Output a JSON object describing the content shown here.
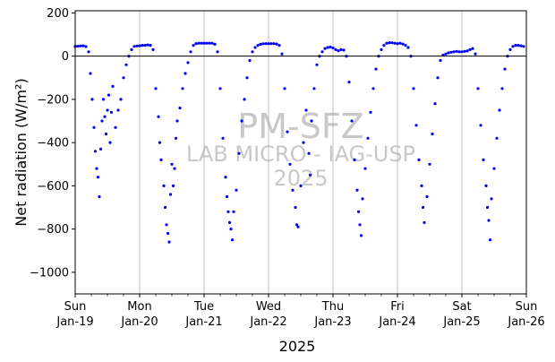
{
  "chart_data": {
    "type": "scatter",
    "title": "",
    "xlabel": "2025",
    "ylabel": "Net radiation (W/m²)",
    "ylim": [
      -1100,
      210
    ],
    "xlim": [
      "2025-01-19",
      "2025-01-26"
    ],
    "yticks": [
      "200",
      "0",
      "−200",
      "−400",
      "−600",
      "−800",
      "−1000"
    ],
    "xticks": [
      {
        "day": "Sun",
        "date": "Jan-19"
      },
      {
        "day": "Mon",
        "date": "Jan-20"
      },
      {
        "day": "Tue",
        "date": "Jan-21"
      },
      {
        "day": "Wed",
        "date": "Jan-22"
      },
      {
        "day": "Thu",
        "date": "Jan-23"
      },
      {
        "day": "Fri",
        "date": "Jan-24"
      },
      {
        "day": "Sat",
        "date": "Jan-25"
      },
      {
        "day": "Sun",
        "date": "Jan-26"
      }
    ],
    "grid": "vertical",
    "zero_line": true,
    "marker_color": "#0000ff",
    "watermark": [
      "PM-SFZ",
      "LAB MICRO - IAG-USP",
      "2025"
    ],
    "series": [
      {
        "points": [
          [
            "2025-01-19 00:00",
            45
          ],
          [
            "2025-01-19 01:00",
            46
          ],
          [
            "2025-01-19 02:00",
            47
          ],
          [
            "2025-01-19 03:00",
            48
          ],
          [
            "2025-01-19 04:00",
            44
          ],
          [
            "2025-01-19 05:00",
            20
          ],
          [
            "2025-01-19 05:40",
            -80
          ],
          [
            "2025-01-19 06:20",
            -200
          ],
          [
            "2025-01-19 07:00",
            -330
          ],
          [
            "2025-01-19 07:30",
            -440
          ],
          [
            "2025-01-19 08:00",
            -520
          ],
          [
            "2025-01-19 08:30",
            -560
          ],
          [
            "2025-01-19 09:00",
            -650
          ],
          [
            "2025-01-19 09:30",
            -430
          ],
          [
            "2025-01-19 10:00",
            -300
          ],
          [
            "2025-01-19 10:30",
            -200
          ],
          [
            "2025-01-19 11:00",
            -280
          ],
          [
            "2025-01-19 11:30",
            -360
          ],
          [
            "2025-01-19 12:00",
            -250
          ],
          [
            "2025-01-19 12:30",
            -180
          ],
          [
            "2025-01-19 13:00",
            -400
          ],
          [
            "2025-01-19 13:30",
            -260
          ],
          [
            "2025-01-19 14:00",
            -140
          ],
          [
            "2025-01-19 15:00",
            -330
          ],
          [
            "2025-01-19 16:00",
            -250
          ],
          [
            "2025-01-19 17:00",
            -200
          ],
          [
            "2025-01-19 18:00",
            -100
          ],
          [
            "2025-01-19 19:00",
            -40
          ],
          [
            "2025-01-19 20:00",
            0
          ],
          [
            "2025-01-19 21:00",
            30
          ],
          [
            "2025-01-19 22:00",
            45
          ],
          [
            "2025-01-19 23:00",
            47
          ],
          [
            "2025-01-20 00:00",
            48
          ],
          [
            "2025-01-20 01:00",
            50
          ],
          [
            "2025-01-20 02:00",
            50
          ],
          [
            "2025-01-20 03:00",
            52
          ],
          [
            "2025-01-20 04:00",
            50
          ],
          [
            "2025-01-20 05:00",
            30
          ],
          [
            "2025-01-20 06:00",
            -150
          ],
          [
            "2025-01-20 07:00",
            -280
          ],
          [
            "2025-01-20 07:30",
            -400
          ],
          [
            "2025-01-20 08:00",
            -480
          ],
          [
            "2025-01-20 09:00",
            -600
          ],
          [
            "2025-01-20 09:30",
            -700
          ],
          [
            "2025-01-20 10:00",
            -780
          ],
          [
            "2025-01-20 10:30",
            -820
          ],
          [
            "2025-01-20 11:00",
            -860
          ],
          [
            "2025-01-20 11:30",
            -640
          ],
          [
            "2025-01-20 12:00",
            -500
          ],
          [
            "2025-01-20 12:30",
            -600
          ],
          [
            "2025-01-20 13:00",
            -520
          ],
          [
            "2025-01-20 13:30",
            -380
          ],
          [
            "2025-01-20 14:00",
            -300
          ],
          [
            "2025-01-20 15:00",
            -240
          ],
          [
            "2025-01-20 16:00",
            -150
          ],
          [
            "2025-01-20 17:00",
            -80
          ],
          [
            "2025-01-20 18:00",
            -30
          ],
          [
            "2025-01-20 19:00",
            20
          ],
          [
            "2025-01-20 20:00",
            50
          ],
          [
            "2025-01-20 21:00",
            58
          ],
          [
            "2025-01-20 22:00",
            60
          ],
          [
            "2025-01-20 23:00",
            60
          ],
          [
            "2025-01-21 00:00",
            60
          ],
          [
            "2025-01-21 01:00",
            60
          ],
          [
            "2025-01-21 02:00",
            60
          ],
          [
            "2025-01-21 03:00",
            60
          ],
          [
            "2025-01-21 04:00",
            55
          ],
          [
            "2025-01-21 05:00",
            20
          ],
          [
            "2025-01-21 06:00",
            -150
          ],
          [
            "2025-01-21 07:00",
            -380
          ],
          [
            "2025-01-21 08:00",
            -560
          ],
          [
            "2025-01-21 08:30",
            -650
          ],
          [
            "2025-01-21 09:00",
            -720
          ],
          [
            "2025-01-21 09:30",
            -770
          ],
          [
            "2025-01-21 10:00",
            -800
          ],
          [
            "2025-01-21 10:30",
            -850
          ],
          [
            "2025-01-21 11:00",
            -720
          ],
          [
            "2025-01-21 12:00",
            -620
          ],
          [
            "2025-01-21 13:00",
            -450
          ],
          [
            "2025-01-21 14:00",
            -300
          ],
          [
            "2025-01-21 15:00",
            -200
          ],
          [
            "2025-01-21 16:00",
            -100
          ],
          [
            "2025-01-21 17:00",
            -20
          ],
          [
            "2025-01-21 18:00",
            20
          ],
          [
            "2025-01-21 19:00",
            40
          ],
          [
            "2025-01-21 20:00",
            50
          ],
          [
            "2025-01-21 21:00",
            55
          ],
          [
            "2025-01-21 22:00",
            57
          ],
          [
            "2025-01-21 23:00",
            58
          ],
          [
            "2025-01-22 00:00",
            58
          ],
          [
            "2025-01-22 01:00",
            58
          ],
          [
            "2025-01-22 02:00",
            58
          ],
          [
            "2025-01-22 03:00",
            56
          ],
          [
            "2025-01-22 04:00",
            50
          ],
          [
            "2025-01-22 05:00",
            10
          ],
          [
            "2025-01-22 06:00",
            -150
          ],
          [
            "2025-01-22 07:00",
            -350
          ],
          [
            "2025-01-22 08:00",
            -500
          ],
          [
            "2025-01-22 09:00",
            -620
          ],
          [
            "2025-01-22 10:00",
            -700
          ],
          [
            "2025-01-22 10:30",
            -780
          ],
          [
            "2025-01-22 11:00",
            -790
          ],
          [
            "2025-01-22 12:00",
            -600
          ],
          [
            "2025-01-22 13:00",
            -400
          ],
          [
            "2025-01-22 14:00",
            -250
          ],
          [
            "2025-01-22 15:00",
            -450
          ],
          [
            "2025-01-22 15:30",
            -550
          ],
          [
            "2025-01-22 16:00",
            -300
          ],
          [
            "2025-01-22 17:00",
            -150
          ],
          [
            "2025-01-22 18:00",
            -40
          ],
          [
            "2025-01-22 19:00",
            0
          ],
          [
            "2025-01-22 20:00",
            20
          ],
          [
            "2025-01-22 21:00",
            35
          ],
          [
            "2025-01-22 22:00",
            40
          ],
          [
            "2025-01-22 23:00",
            42
          ],
          [
            "2025-01-23 00:00",
            38
          ],
          [
            "2025-01-23 01:00",
            30
          ],
          [
            "2025-01-23 02:00",
            25
          ],
          [
            "2025-01-23 03:00",
            30
          ],
          [
            "2025-01-23 04:00",
            28
          ],
          [
            "2025-01-23 05:00",
            0
          ],
          [
            "2025-01-23 06:00",
            -120
          ],
          [
            "2025-01-23 07:00",
            -300
          ],
          [
            "2025-01-23 08:00",
            -480
          ],
          [
            "2025-01-23 09:00",
            -620
          ],
          [
            "2025-01-23 09:30",
            -720
          ],
          [
            "2025-01-23 10:00",
            -780
          ],
          [
            "2025-01-23 10:30",
            -830
          ],
          [
            "2025-01-23 11:00",
            -660
          ],
          [
            "2025-01-23 12:00",
            -520
          ],
          [
            "2025-01-23 13:00",
            -380
          ],
          [
            "2025-01-23 14:00",
            -260
          ],
          [
            "2025-01-23 15:00",
            -150
          ],
          [
            "2025-01-23 16:00",
            -60
          ],
          [
            "2025-01-23 17:00",
            0
          ],
          [
            "2025-01-23 18:00",
            30
          ],
          [
            "2025-01-23 19:00",
            50
          ],
          [
            "2025-01-23 20:00",
            60
          ],
          [
            "2025-01-23 21:00",
            62
          ],
          [
            "2025-01-23 22:00",
            62
          ],
          [
            "2025-01-23 23:00",
            60
          ],
          [
            "2025-01-24 00:00",
            58
          ],
          [
            "2025-01-24 01:00",
            60
          ],
          [
            "2025-01-24 02:00",
            56
          ],
          [
            "2025-01-24 03:00",
            50
          ],
          [
            "2025-01-24 04:00",
            40
          ],
          [
            "2025-01-24 05:00",
            0
          ],
          [
            "2025-01-24 06:00",
            -150
          ],
          [
            "2025-01-24 07:00",
            -320
          ],
          [
            "2025-01-24 08:00",
            -480
          ],
          [
            "2025-01-24 09:00",
            -600
          ],
          [
            "2025-01-24 09:30",
            -700
          ],
          [
            "2025-01-24 10:00",
            -770
          ],
          [
            "2025-01-24 11:00",
            -650
          ],
          [
            "2025-01-24 12:00",
            -500
          ],
          [
            "2025-01-24 13:00",
            -360
          ],
          [
            "2025-01-24 14:00",
            -220
          ],
          [
            "2025-01-24 15:00",
            -100
          ],
          [
            "2025-01-24 16:00",
            -20
          ],
          [
            "2025-01-24 17:00",
            5
          ],
          [
            "2025-01-24 18:00",
            10
          ],
          [
            "2025-01-24 19:00",
            15
          ],
          [
            "2025-01-24 20:00",
            18
          ],
          [
            "2025-01-24 21:00",
            20
          ],
          [
            "2025-01-24 22:00",
            22
          ],
          [
            "2025-01-24 23:00",
            20
          ],
          [
            "2025-01-25 00:00",
            20
          ],
          [
            "2025-01-25 01:00",
            22
          ],
          [
            "2025-01-25 02:00",
            24
          ],
          [
            "2025-01-25 03:00",
            30
          ],
          [
            "2025-01-25 04:00",
            35
          ],
          [
            "2025-01-25 05:00",
            10
          ],
          [
            "2025-01-25 06:00",
            -150
          ],
          [
            "2025-01-25 07:00",
            -320
          ],
          [
            "2025-01-25 08:00",
            -480
          ],
          [
            "2025-01-25 09:00",
            -600
          ],
          [
            "2025-01-25 09:30",
            -700
          ],
          [
            "2025-01-25 10:00",
            -760
          ],
          [
            "2025-01-25 10:30",
            -850
          ],
          [
            "2025-01-25 11:00",
            -660
          ],
          [
            "2025-01-25 12:00",
            -520
          ],
          [
            "2025-01-25 13:00",
            -380
          ],
          [
            "2025-01-25 14:00",
            -250
          ],
          [
            "2025-01-25 15:00",
            -150
          ],
          [
            "2025-01-25 16:00",
            -60
          ],
          [
            "2025-01-25 17:00",
            0
          ],
          [
            "2025-01-25 18:00",
            30
          ],
          [
            "2025-01-25 19:00",
            45
          ],
          [
            "2025-01-25 20:00",
            50
          ],
          [
            "2025-01-25 21:00",
            50
          ],
          [
            "2025-01-25 22:00",
            48
          ],
          [
            "2025-01-25 23:00",
            45
          ]
        ]
      }
    ]
  }
}
